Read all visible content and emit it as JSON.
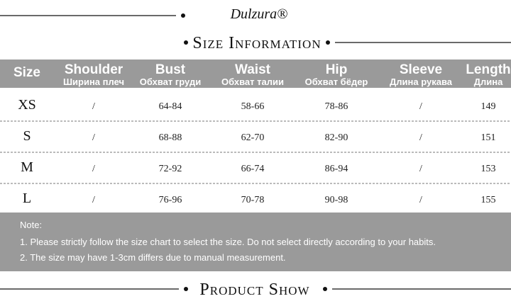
{
  "header": {
    "brand": "Dulzura®",
    "title": "Size Information"
  },
  "table": {
    "columns": [
      {
        "label": "Size"
      },
      {
        "label": "Shoulder",
        "sublabel": "Ширина плеч"
      },
      {
        "label": "Bust",
        "sublabel": "Обхват груди"
      },
      {
        "label": "Waist",
        "sublabel": "Обхват талии"
      },
      {
        "label": "Hip",
        "sublabel": "Обхват бёдер"
      },
      {
        "label": "Sleeve",
        "sublabel": "Длина рукава"
      },
      {
        "label": "Length",
        "sublabel": "Длина"
      }
    ],
    "rows": [
      [
        "XS",
        "/",
        "64-84",
        "58-66",
        "78-86",
        "/",
        "149"
      ],
      [
        "S",
        "/",
        "68-88",
        "62-70",
        "82-90",
        "/",
        "151"
      ],
      [
        "M",
        "/",
        "72-92",
        "66-74",
        "86-94",
        "/",
        "153"
      ],
      [
        "L",
        "/",
        "76-96",
        "70-78",
        "90-98",
        "/",
        "155"
      ]
    ]
  },
  "notes": {
    "title": "Note:",
    "items": [
      "1. Please strictly follow the size chart to select the size. Do not select directly according to your habits.",
      "2. The size may have 1-3cm differs due to manual measurement."
    ]
  },
  "footer": {
    "title": "Product Show"
  }
}
